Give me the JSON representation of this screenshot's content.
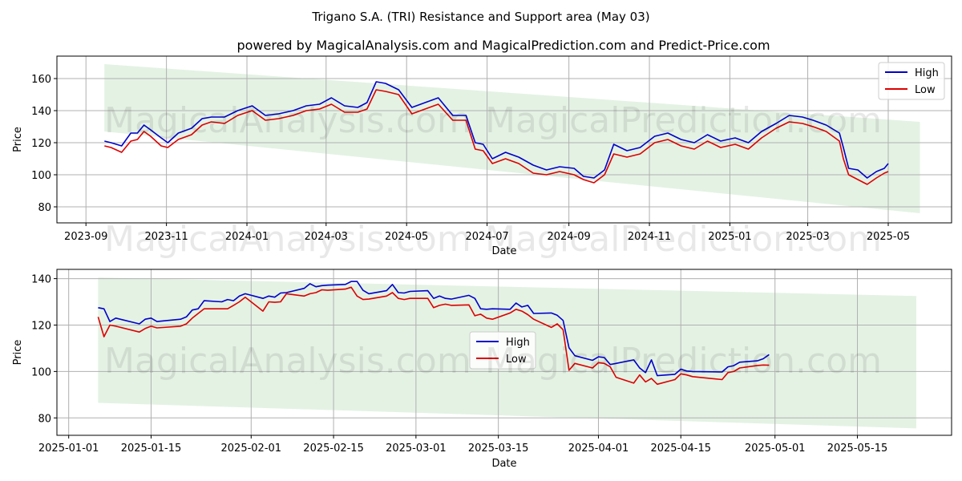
{
  "figure": {
    "title": "Trigano S.A. (TRI) Resistance and Support area (May 03)",
    "subtitle": "powered by MagicalAnalysis.com and MagicalPrediction.com and Predict-Price.com",
    "watermarks": [
      "MagicalAnalysis.com",
      "MagicalPrediction.com"
    ]
  },
  "colors": {
    "high": "#0000cc",
    "low": "#dd0000",
    "band": "#d9ecd9",
    "grid": "#b0b0b0"
  },
  "chart_data": [
    {
      "type": "line",
      "xlabel": "Date",
      "ylabel": "Price",
      "x_ticks": [
        "2023-09",
        "2023-11",
        "2024-01",
        "2024-03",
        "2024-05",
        "2024-07",
        "2024-09",
        "2024-11",
        "2025-01",
        "2025-03",
        "2025-05"
      ],
      "y_ticks": [
        80,
        100,
        120,
        140,
        160
      ],
      "xlim": [
        "2023-08-10",
        "2025-06-18"
      ],
      "ylim": [
        70,
        174
      ],
      "grid": true,
      "legend": "top-right",
      "band": {
        "x": [
          "2023-09-15",
          "2025-05-25"
        ],
        "upper": [
          169,
          133
        ],
        "lower": [
          127,
          76
        ]
      },
      "series": [
        {
          "name": "High",
          "x": [
            "2023-09-15",
            "2023-09-20",
            "2023-09-28",
            "2023-10-05",
            "2023-10-10",
            "2023-10-15",
            "2023-10-20",
            "2023-10-28",
            "2023-11-02",
            "2023-11-10",
            "2023-11-20",
            "2023-11-28",
            "2023-12-05",
            "2023-12-15",
            "2023-12-25",
            "2024-01-05",
            "2024-01-15",
            "2024-01-25",
            "2024-02-05",
            "2024-02-15",
            "2024-02-25",
            "2024-03-05",
            "2024-03-15",
            "2024-03-25",
            "2024-04-01",
            "2024-04-08",
            "2024-04-15",
            "2024-04-25",
            "2024-05-05",
            "2024-05-15",
            "2024-05-25",
            "2024-06-05",
            "2024-06-10",
            "2024-06-15",
            "2024-06-22",
            "2024-06-28",
            "2024-07-05",
            "2024-07-15",
            "2024-07-25",
            "2024-08-05",
            "2024-08-15",
            "2024-08-25",
            "2024-09-05",
            "2024-09-12",
            "2024-09-20",
            "2024-09-28",
            "2024-10-05",
            "2024-10-15",
            "2024-10-25",
            "2024-11-05",
            "2024-11-15",
            "2024-11-25",
            "2024-12-05",
            "2024-12-15",
            "2024-12-25",
            "2025-01-05",
            "2025-01-15",
            "2025-01-25",
            "2025-02-05",
            "2025-02-15",
            "2025-02-25",
            "2025-03-05",
            "2025-03-15",
            "2025-03-25",
            "2025-03-28",
            "2025-04-01",
            "2025-04-08",
            "2025-04-15",
            "2025-04-22",
            "2025-04-28",
            "2025-05-01"
          ],
          "values": [
            121,
            120,
            118,
            126,
            126,
            131,
            128,
            123,
            120,
            126,
            129,
            135,
            136,
            136,
            140,
            143,
            137,
            138,
            140,
            143,
            144,
            148,
            143,
            142,
            145,
            158,
            157,
            153,
            142,
            145,
            148,
            137,
            137,
            137,
            120,
            119,
            110,
            114,
            111,
            106,
            103,
            105,
            104,
            99,
            98,
            103,
            119,
            115,
            117,
            124,
            126,
            122,
            120,
            125,
            121,
            123,
            120,
            127,
            132,
            137,
            136,
            134,
            131,
            126,
            117,
            104,
            103,
            98,
            102,
            104,
            107
          ]
        },
        {
          "name": "Low",
          "x": [
            "2023-09-15",
            "2023-09-20",
            "2023-09-28",
            "2023-10-05",
            "2023-10-10",
            "2023-10-15",
            "2023-10-20",
            "2023-10-28",
            "2023-11-02",
            "2023-11-10",
            "2023-11-20",
            "2023-11-28",
            "2023-12-05",
            "2023-12-15",
            "2023-12-25",
            "2024-01-05",
            "2024-01-15",
            "2024-01-25",
            "2024-02-05",
            "2024-02-15",
            "2024-02-25",
            "2024-03-05",
            "2024-03-15",
            "2024-03-25",
            "2024-04-01",
            "2024-04-08",
            "2024-04-15",
            "2024-04-25",
            "2024-05-05",
            "2024-05-15",
            "2024-05-25",
            "2024-06-05",
            "2024-06-10",
            "2024-06-15",
            "2024-06-22",
            "2024-06-28",
            "2024-07-05",
            "2024-07-15",
            "2024-07-25",
            "2024-08-05",
            "2024-08-15",
            "2024-08-25",
            "2024-09-05",
            "2024-09-12",
            "2024-09-20",
            "2024-09-28",
            "2024-10-05",
            "2024-10-15",
            "2024-10-25",
            "2024-11-05",
            "2024-11-15",
            "2024-11-25",
            "2024-12-05",
            "2024-12-15",
            "2024-12-25",
            "2025-01-05",
            "2025-01-15",
            "2025-01-25",
            "2025-02-05",
            "2025-02-15",
            "2025-02-25",
            "2025-03-05",
            "2025-03-15",
            "2025-03-25",
            "2025-03-28",
            "2025-04-01",
            "2025-04-08",
            "2025-04-15",
            "2025-04-22",
            "2025-04-28",
            "2025-05-01"
          ],
          "values": [
            118,
            117,
            114,
            121,
            122,
            127,
            124,
            118,
            117,
            122,
            125,
            131,
            133,
            132,
            137,
            140,
            134,
            135,
            137,
            140,
            141,
            144,
            139,
            139,
            141,
            153,
            152,
            150,
            138,
            141,
            144,
            134,
            134,
            134,
            116,
            115,
            107,
            110,
            107,
            101,
            100,
            102,
            100,
            97,
            95,
            100,
            113,
            111,
            113,
            120,
            122,
            118,
            116,
            121,
            117,
            119,
            116,
            123,
            129,
            133,
            132,
            130,
            127,
            121,
            110,
            100,
            97,
            94,
            98,
            101,
            102
          ]
        }
      ]
    },
    {
      "type": "line",
      "xlabel": "Date",
      "ylabel": "Price",
      "x_ticks": [
        "2025-01-01",
        "2025-01-15",
        "2025-02-01",
        "2025-02-15",
        "2025-03-01",
        "2025-03-15",
        "2025-04-01",
        "2025-04-15",
        "2025-05-01",
        "2025-05-15"
      ],
      "y_ticks": [
        80,
        100,
        120,
        140
      ],
      "xlim": [
        "2024-12-30",
        "2025-05-31"
      ],
      "ylim": [
        72.5,
        144
      ],
      "grid": true,
      "legend": "center",
      "band": {
        "x": [
          "2025-01-06",
          "2025-05-25"
        ],
        "upper": [
          140.5,
          132.5
        ],
        "lower": [
          86.5,
          75.5
        ]
      },
      "series": [
        {
          "name": "High",
          "x": [
            "2025-01-06",
            "2025-01-07",
            "2025-01-08",
            "2025-01-09",
            "2025-01-13",
            "2025-01-14",
            "2025-01-15",
            "2025-01-16",
            "2025-01-20",
            "2025-01-21",
            "2025-01-22",
            "2025-01-23",
            "2025-01-24",
            "2025-01-27",
            "2025-01-28",
            "2025-01-29",
            "2025-01-30",
            "2025-01-31",
            "2025-02-03",
            "2025-02-04",
            "2025-02-05",
            "2025-02-06",
            "2025-02-07",
            "2025-02-10",
            "2025-02-11",
            "2025-02-12",
            "2025-02-13",
            "2025-02-14",
            "2025-02-17",
            "2025-02-18",
            "2025-02-19",
            "2025-02-20",
            "2025-02-21",
            "2025-02-24",
            "2025-02-25",
            "2025-02-26",
            "2025-02-27",
            "2025-02-28",
            "2025-03-03",
            "2025-03-04",
            "2025-03-05",
            "2025-03-06",
            "2025-03-07",
            "2025-03-10",
            "2025-03-11",
            "2025-03-12",
            "2025-03-13",
            "2025-03-14",
            "2025-03-17",
            "2025-03-18",
            "2025-03-19",
            "2025-03-20",
            "2025-03-21",
            "2025-03-24",
            "2025-03-25",
            "2025-03-26",
            "2025-03-27",
            "2025-03-28",
            "2025-03-31",
            "2025-04-01",
            "2025-04-02",
            "2025-04-03",
            "2025-04-04",
            "2025-04-07",
            "2025-04-08",
            "2025-04-09",
            "2025-04-10",
            "2025-04-11",
            "2025-04-14",
            "2025-04-15",
            "2025-04-16",
            "2025-04-17",
            "2025-04-22",
            "2025-04-23",
            "2025-04-24",
            "2025-04-25",
            "2025-04-28",
            "2025-04-29",
            "2025-04-30"
          ],
          "values": [
            127.5,
            127,
            121.5,
            123,
            120.5,
            122.5,
            123,
            121.5,
            122.5,
            123.5,
            126.5,
            127,
            130.5,
            130,
            131,
            130.5,
            132.5,
            133.5,
            131.5,
            132.5,
            132,
            133.8,
            134,
            135.8,
            137.8,
            136.5,
            137,
            137.2,
            137.5,
            138.8,
            138.8,
            135,
            133.5,
            134.8,
            137.5,
            134,
            133.8,
            134.5,
            134.8,
            131.5,
            132.5,
            131.5,
            131.2,
            132.8,
            131.5,
            127,
            126.8,
            127,
            126.8,
            129.5,
            127.8,
            128.5,
            125,
            125.2,
            124.2,
            122,
            110.2,
            106.8,
            104.8,
            106.3,
            106,
            103,
            103.5,
            105,
            101.5,
            99.5,
            105,
            98.2,
            98.8,
            101,
            100.2,
            100,
            99.8,
            102,
            102.5,
            104,
            104.6,
            105.5,
            107.3
          ]
        },
        {
          "name": "Low",
          "x": [
            "2025-01-06",
            "2025-01-07",
            "2025-01-08",
            "2025-01-09",
            "2025-01-13",
            "2025-01-14",
            "2025-01-15",
            "2025-01-16",
            "2025-01-20",
            "2025-01-21",
            "2025-01-22",
            "2025-01-23",
            "2025-01-24",
            "2025-01-27",
            "2025-01-28",
            "2025-01-29",
            "2025-01-30",
            "2025-01-31",
            "2025-02-03",
            "2025-02-04",
            "2025-02-05",
            "2025-02-06",
            "2025-02-07",
            "2025-02-10",
            "2025-02-11",
            "2025-02-12",
            "2025-02-13",
            "2025-02-14",
            "2025-02-17",
            "2025-02-18",
            "2025-02-19",
            "2025-02-20",
            "2025-02-21",
            "2025-02-24",
            "2025-02-25",
            "2025-02-26",
            "2025-02-27",
            "2025-02-28",
            "2025-03-03",
            "2025-03-04",
            "2025-03-05",
            "2025-03-06",
            "2025-03-07",
            "2025-03-10",
            "2025-03-11",
            "2025-03-12",
            "2025-03-13",
            "2025-03-14",
            "2025-03-17",
            "2025-03-18",
            "2025-03-19",
            "2025-03-20",
            "2025-03-21",
            "2025-03-24",
            "2025-03-25",
            "2025-03-26",
            "2025-03-27",
            "2025-03-28",
            "2025-03-31",
            "2025-04-01",
            "2025-04-02",
            "2025-04-03",
            "2025-04-04",
            "2025-04-07",
            "2025-04-08",
            "2025-04-09",
            "2025-04-10",
            "2025-04-11",
            "2025-04-14",
            "2025-04-15",
            "2025-04-16",
            "2025-04-17",
            "2025-04-22",
            "2025-04-23",
            "2025-04-24",
            "2025-04-25",
            "2025-04-28",
            "2025-04-29",
            "2025-04-30"
          ],
          "values": [
            123.5,
            115,
            120,
            119.5,
            117,
            118.5,
            119.5,
            118.8,
            119.5,
            120.5,
            123,
            125,
            127,
            127,
            127,
            128.5,
            130,
            132,
            126,
            130,
            129.8,
            130,
            133.5,
            132.5,
            133.5,
            134,
            135.2,
            135,
            135.5,
            136.3,
            132.5,
            131,
            131.2,
            132.5,
            134,
            131.5,
            131,
            131.5,
            131.5,
            127.5,
            128.5,
            129,
            128.5,
            128.7,
            124,
            124.7,
            123,
            122.5,
            125.2,
            126.8,
            126,
            124.5,
            122.5,
            119,
            120.5,
            118,
            100.5,
            103.5,
            101.5,
            103.8,
            103.5,
            102,
            97.5,
            95,
            98.5,
            95.5,
            97,
            94.5,
            96.5,
            99,
            98.5,
            97.8,
            96.5,
            99.5,
            100,
            101.5,
            102.6,
            102.8,
            102.7
          ]
        }
      ]
    }
  ]
}
